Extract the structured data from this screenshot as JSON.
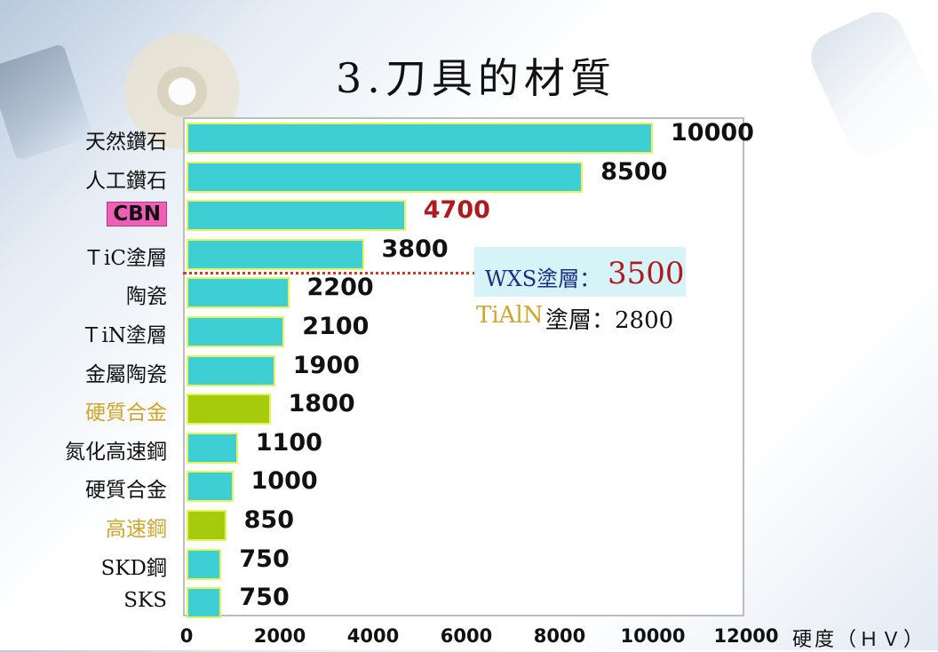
{
  "title": "3.刀具的材質",
  "chart_data": {
    "type": "bar",
    "orientation": "horizontal",
    "title": "3.刀具的材質",
    "xlabel": "硬度（ＨＶ）",
    "ylabel": "",
    "xlim": [
      0,
      12000
    ],
    "xticks": [
      "0",
      "2000",
      "4000",
      "6000",
      "8000",
      "10000",
      "12000"
    ],
    "grid": false,
    "categories": [
      "天然鑽石",
      "人工鑽石",
      "CBN",
      "ＴiC塗層",
      "陶瓷",
      "ＴiN塗層",
      "金屬陶瓷",
      "硬質合金",
      "氮化高速鋼",
      "硬質合金",
      "高速鋼",
      "SKD鋼",
      "SKS"
    ],
    "values": [
      10000,
      8500,
      4700,
      3800,
      2200,
      2100,
      1900,
      1800,
      1100,
      1000,
      850,
      750,
      750
    ],
    "value_labels": [
      "10000",
      "8500",
      "4700",
      "3800",
      "2200",
      "2100",
      "1900",
      "1800",
      "1100",
      "1000",
      "850",
      "750",
      "750"
    ],
    "bar_colors": [
      "#3dcfd3",
      "#3dcfd3",
      "#3dcfd3",
      "#3dcfd3",
      "#3dcfd3",
      "#3dcfd3",
      "#3dcfd3",
      "#a4cc0c",
      "#3dcfd3",
      "#3dcfd3",
      "#a4cc0c",
      "#3dcfd3",
      "#3dcfd3"
    ],
    "label_styles": [
      "normal",
      "normal",
      "boxed",
      "normal",
      "normal",
      "normal",
      "normal",
      "gold",
      "normal",
      "normal",
      "gold",
      "normal",
      "normal"
    ],
    "value_styles": [
      "normal",
      "normal",
      "red",
      "normal",
      "normal",
      "normal",
      "normal",
      "normal",
      "normal",
      "normal",
      "normal",
      "normal",
      "normal"
    ],
    "reference_line": {
      "value": 3500
    },
    "annotations": {
      "wxs_label": "WXS塗層：",
      "wxs_value": "3500",
      "tialn_label": "TiAlN",
      "tialn_rest": "塗層：2800"
    }
  }
}
